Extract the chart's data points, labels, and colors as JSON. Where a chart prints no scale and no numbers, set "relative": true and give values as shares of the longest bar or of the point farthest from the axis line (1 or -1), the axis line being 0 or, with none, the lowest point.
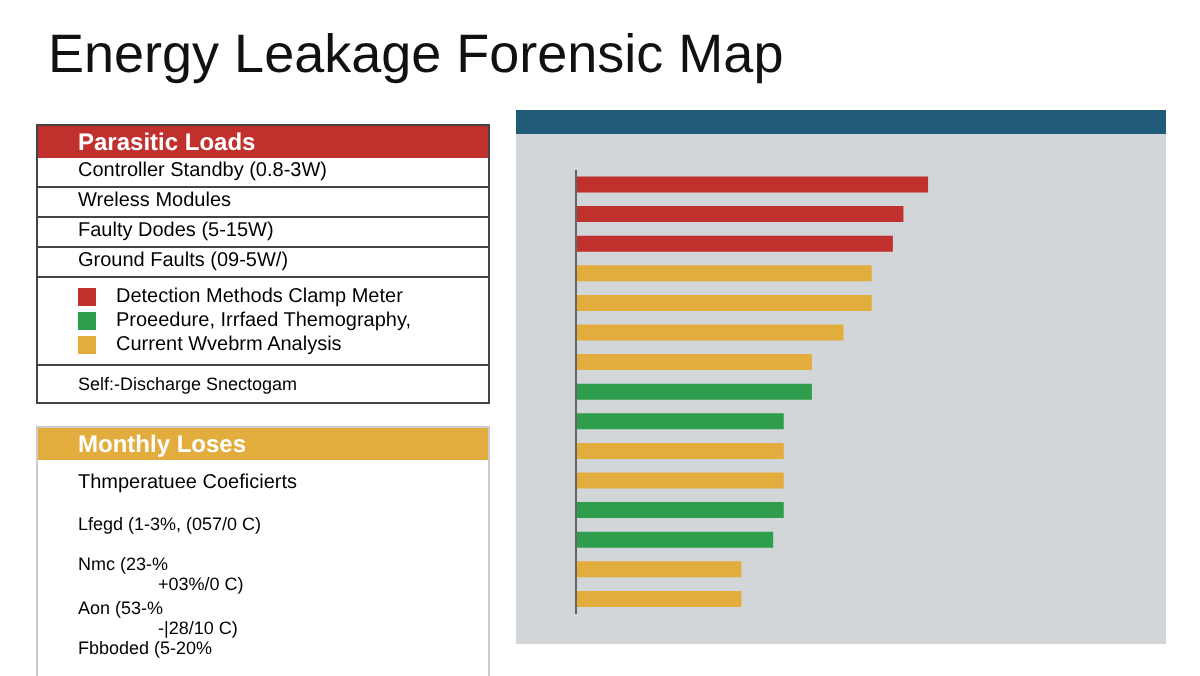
{
  "chart_data": {
    "type": "bar",
    "orientation": "horizontal",
    "relative": true,
    "title": "Energy Leakage Forensic Map",
    "categories": [
      null,
      null,
      null,
      null,
      null,
      null,
      null,
      null,
      null,
      null,
      null,
      null,
      null,
      null,
      null
    ],
    "values": [
      1,
      0.93,
      0.9,
      0.84,
      0.84,
      0.76,
      0.67,
      0.67,
      0.59,
      0.59,
      0.59,
      0.59,
      0.56,
      0.47,
      0.47
    ],
    "colors": [
      "#c0302c",
      "#c0302c",
      "#c0302c",
      "#e3ad3e",
      "#e3ad3e",
      "#e3ad3e",
      "#e3ad3e",
      "#2e9e4c",
      "#2e9e4c",
      "#e3ad3e",
      "#e3ad3e",
      "#2e9e4c",
      "#2e9e4c",
      "#e3ad3e",
      "#e3ad3e"
    ],
    "annotations": [
      "Parasitic Loads",
      "Controller Standby (0.8-3W)",
      "Wreless Modules",
      "Faulty Dodes (5-15W)",
      "Ground Faults (09-5W/)",
      "Detection Methods Clamp Meter",
      "Proeedure, Irrfaed Themography,",
      "Current Wvebrm Analysis",
      "Self:-Discharge Snectogam",
      "Monthly Loses",
      "Thmperatuee Coeficierts",
      "Lfegd (1-3%, (057/0 C)",
      "Nmc (23-%",
      "+03%/0 C)",
      "Aon (53-%",
      "-|28/10 C)",
      "Fbboded (5-20%"
    ]
  }
}
